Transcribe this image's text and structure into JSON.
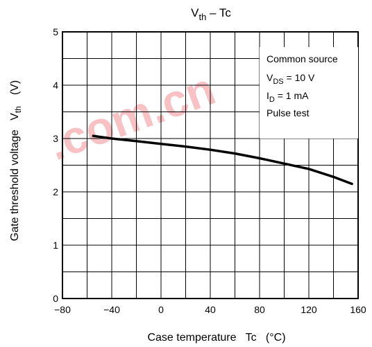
{
  "chart_data": {
    "type": "line",
    "title": {
      "main": "V",
      "sub": "th",
      "rest": " – Tc"
    },
    "xlabel": "Case temperature   Tc   (°C)",
    "ylabel": "Gate threshold voltage   V",
    "ylabel_sub": "th",
    "ylabel_unit": "(V)",
    "xlim": [
      -80,
      160
    ],
    "ylim": [
      0,
      5
    ],
    "x_ticks": [
      -80,
      -40,
      0,
      40,
      80,
      120,
      160
    ],
    "x_tick_labels": [
      "−80",
      "−40",
      "0",
      "40",
      "80",
      "120",
      "160"
    ],
    "y_ticks": [
      0,
      1,
      2,
      3,
      4,
      5
    ],
    "y_tick_labels": [
      "0",
      "1",
      "2",
      "3",
      "4",
      "5"
    ],
    "grid": true,
    "x_grid_step": 20,
    "y_grid_step": 0.5,
    "series": [
      {
        "x": [
          -55,
          -40,
          -20,
          0,
          20,
          40,
          60,
          80,
          100,
          120,
          140,
          155
        ],
        "y": [
          3.05,
          3.0,
          2.95,
          2.9,
          2.85,
          2.79,
          2.72,
          2.63,
          2.53,
          2.43,
          2.28,
          2.15
        ]
      }
    ],
    "conditions": [
      {
        "text": "Common source"
      },
      {
        "pre": "V",
        "sub": "DS",
        "post": " = 10 V"
      },
      {
        "pre": "I",
        "sub": "D",
        "post": " = 1 mA"
      },
      {
        "text": "Pulse test"
      }
    ]
  },
  "watermark": {
    "text": ".com.cn",
    "color": "#e6252a"
  }
}
